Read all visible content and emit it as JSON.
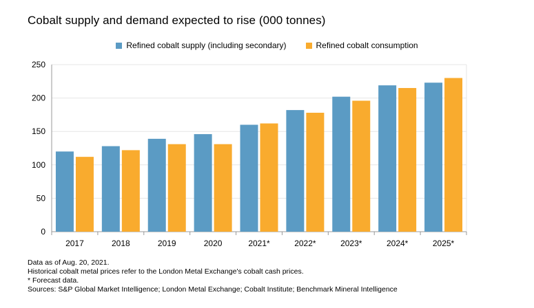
{
  "title": "Cobalt supply and demand expected to rise (000 tonnes)",
  "colors": {
    "supply": "#5b9bc4",
    "consumption": "#f9ab2e",
    "grid": "#e6e6e6",
    "axis": "#999999"
  },
  "legend": [
    {
      "label": "Refined cobalt supply (including secondary)",
      "color": "#5b9bc4"
    },
    {
      "label": "Refined cobalt consumption",
      "color": "#f9ab2e"
    }
  ],
  "chart_data": {
    "type": "bar",
    "title": "Cobalt supply and demand expected to rise (000 tonnes)",
    "categories": [
      "2017",
      "2018",
      "2019",
      "2020",
      "2021*",
      "2022*",
      "2023*",
      "2024*",
      "2025*"
    ],
    "series": [
      {
        "name": "Refined cobalt supply (including secondary)",
        "values": [
          120,
          128,
          139,
          146,
          160,
          182,
          202,
          219,
          223
        ]
      },
      {
        "name": "Refined cobalt consumption",
        "values": [
          112,
          122,
          131,
          131,
          162,
          178,
          196,
          215,
          230
        ]
      }
    ],
    "ylim": [
      0,
      250
    ],
    "yticks": [
      0,
      50,
      100,
      150,
      200,
      250
    ],
    "xlabel": "",
    "ylabel": "",
    "legend_position": "top-center"
  },
  "notes": [
    "Data as of Aug. 20, 2021.",
    "Historical cobalt metal prices refer to the London Metal Exchange's cobalt cash prices.",
    "* Forecast data.",
    "Sources: S&P Global Market Intelligence; London Metal Exchange; Cobalt Institute; Benchmark Mineral Intelligence"
  ]
}
